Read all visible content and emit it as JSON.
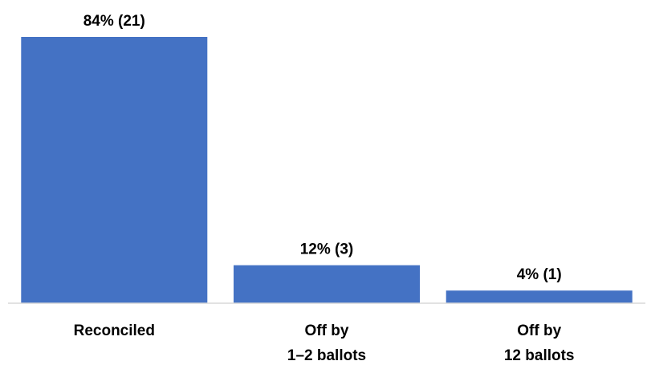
{
  "chart_data": {
    "type": "bar",
    "title": "",
    "xlabel": "",
    "ylabel": "",
    "categories": [
      [
        "Reconciled"
      ],
      [
        "Off by",
        "1–2 ballots"
      ],
      [
        "Off by",
        "12 ballots"
      ]
    ],
    "values": [
      84,
      12,
      4
    ],
    "data_labels": [
      "84% (21)",
      "12% (3)",
      "4% (1)"
    ],
    "ylim": [
      0,
      84
    ],
    "grid": false,
    "legend": "none",
    "bar_color": "#4472C4",
    "axis_color": "#D9D9D9"
  }
}
